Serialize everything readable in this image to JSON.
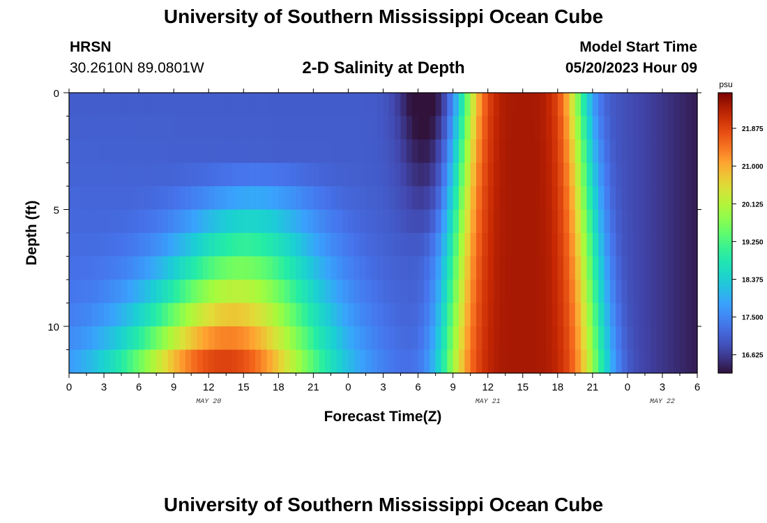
{
  "header": {
    "title": "University of Southern Mississippi Ocean Cube",
    "station": "HRSN",
    "coords": "30.2610N  89.0801W",
    "subtitle": "2-D Salinity at Depth",
    "model_label": "Model Start Time",
    "model_time": "05/20/2023 Hour 09"
  },
  "footer": {
    "title": "University of Southern Mississippi Ocean Cube"
  },
  "chart_data": {
    "type": "heatmap",
    "title": "2-D Salinity at Depth",
    "xlabel": "Forecast Time(Z)",
    "ylabel": "Depth (ft)",
    "x_range_hours": [
      0,
      54
    ],
    "x_tick_labels": [
      "0",
      "3",
      "6",
      "9",
      "12",
      "15",
      "18",
      "21",
      "0",
      "3",
      "6",
      "9",
      "12",
      "15",
      "18",
      "21",
      "0",
      "3",
      "6"
    ],
    "date_labels": [
      {
        "text": "MAY 20",
        "hour": 12
      },
      {
        "text": "MAY 21",
        "hour": 36
      },
      {
        "text": "MAY 22",
        "hour": 51
      }
    ],
    "y_range_ft": [
      0,
      12
    ],
    "y_ticks": [
      0,
      5,
      10
    ],
    "colorbar": {
      "unit": "psu",
      "min": 16.2,
      "max": 22.7,
      "tick_labels": [
        "21.875",
        "21.000",
        "20.125",
        "19.250",
        "18.375",
        "17.500",
        "16.625"
      ],
      "tick_values": [
        21.875,
        21.0,
        20.125,
        19.25,
        18.375,
        17.5,
        16.625
      ]
    },
    "grid": false,
    "colors": {
      "frame": "#000000"
    }
  }
}
